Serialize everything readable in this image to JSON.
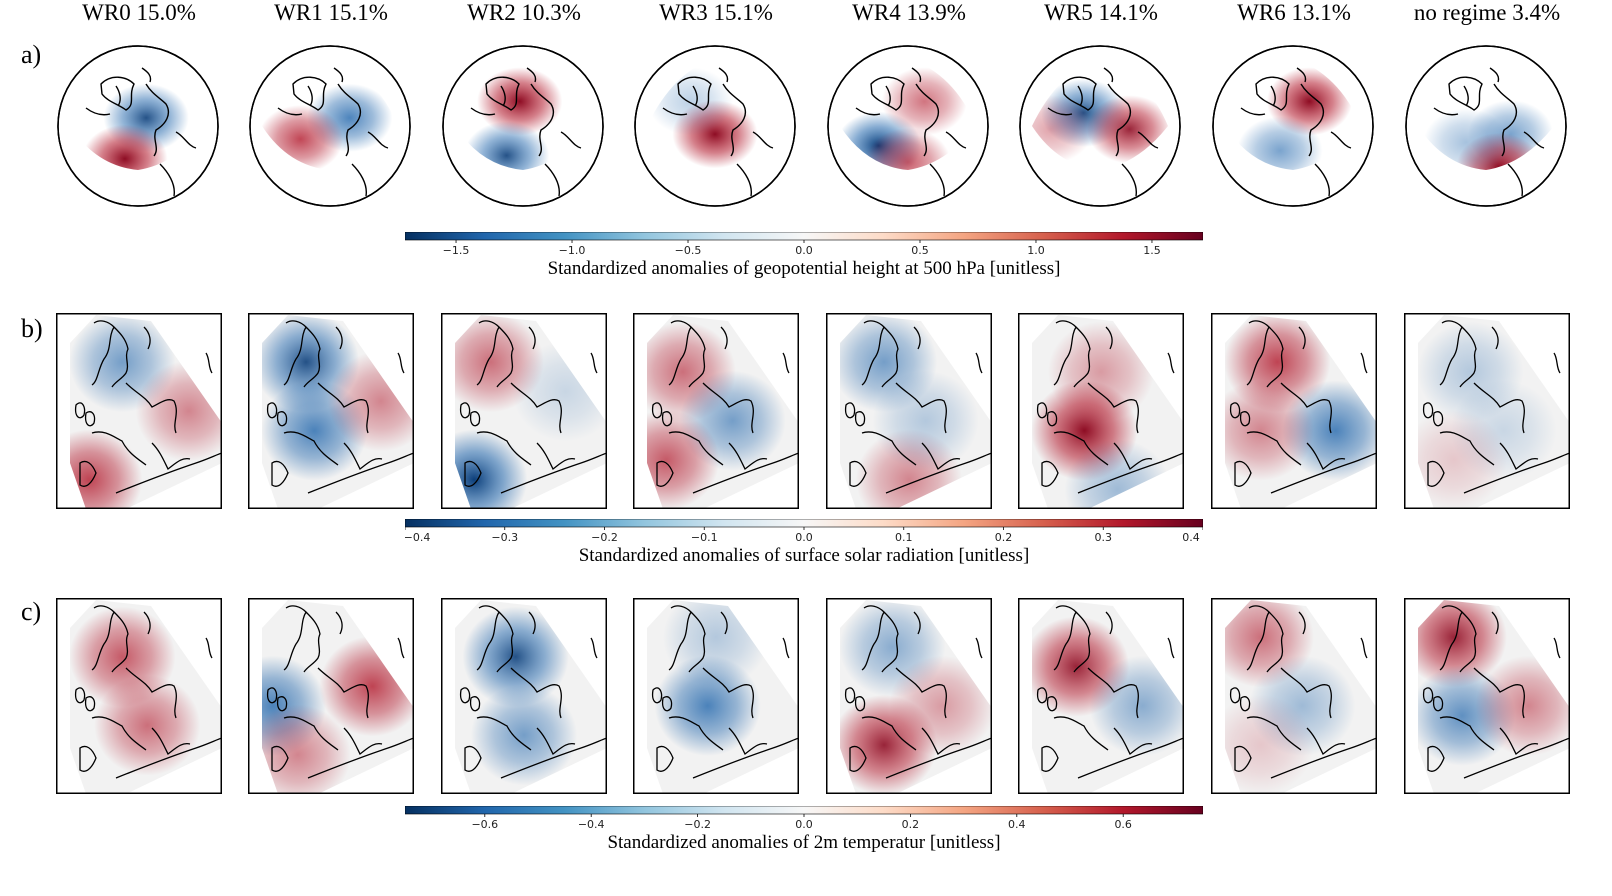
{
  "chart_data": {
    "type": "heatmap",
    "regimes": [
      "WR0",
      "WR1",
      "WR2",
      "WR3",
      "WR4",
      "WR5",
      "WR6",
      "no regime"
    ],
    "regime_titles": [
      "WR0 15.0%",
      "WR1 15.1%",
      "WR2 10.3%",
      "WR3 15.1%",
      "WR4 13.9%",
      "WR5 14.1%",
      "WR6 13.1%",
      "no regime 3.4%"
    ],
    "frequency_percent": [
      15.0,
      15.1,
      10.3,
      15.1,
      13.9,
      14.1,
      13.1,
      3.4
    ],
    "rows": [
      {
        "label": "a)",
        "variable": "geopotential height at 500 hPa",
        "colorbar_label": "Standardized anomalies of geopotential height at 500 hPa [unitless]",
        "range": [
          -1.72,
          1.72
        ],
        "ticks": [
          -1.5,
          -1.0,
          -0.5,
          0.0,
          0.5,
          1.0,
          1.5
        ],
        "tick_labels": [
          "−1.5",
          "−1.0",
          "−0.5",
          "0.0",
          "0.5",
          "1.0",
          "1.5"
        ]
      },
      {
        "label": "b)",
        "variable": "surface solar radiation",
        "colorbar_label": "Standardized anomalies of surface solar radiation [unitless]",
        "range": [
          -0.4,
          0.4
        ],
        "ticks": [
          -0.4,
          -0.3,
          -0.2,
          -0.1,
          0.0,
          0.1,
          0.2,
          0.3,
          0.4
        ],
        "tick_labels": [
          "−0.4",
          "−0.3",
          "−0.2",
          "−0.1",
          "0.0",
          "0.1",
          "0.2",
          "0.3",
          "0.4"
        ]
      },
      {
        "label": "c)",
        "variable": "2m temperature",
        "colorbar_label": "Standardized anomalies of 2m temperatur [unitless]",
        "range": [
          -0.75,
          0.75
        ],
        "ticks": [
          -0.6,
          -0.4,
          -0.2,
          0.0,
          0.2,
          0.4,
          0.6
        ],
        "tick_labels": [
          "−0.6",
          "−0.4",
          "−0.2",
          "0.0",
          "0.2",
          "0.4",
          "0.6"
        ]
      }
    ],
    "colormap": [
      "#053061",
      "#2166ac",
      "#4393c3",
      "#92c5de",
      "#d1e5f0",
      "#f7f7f7",
      "#fddbc7",
      "#f4a582",
      "#d6604d",
      "#b2182b",
      "#67001f"
    ],
    "anomaly_patterns": {
      "z500": [
        [
          {
            "x": 0.55,
            "y": 0.45,
            "v": -0.9
          },
          {
            "x": 0.42,
            "y": 0.7,
            "v": 1.0
          }
        ],
        [
          {
            "x": 0.62,
            "y": 0.45,
            "v": -0.8
          },
          {
            "x": 0.32,
            "y": 0.58,
            "v": 0.8
          }
        ],
        [
          {
            "x": 0.48,
            "y": 0.35,
            "v": 1.0
          },
          {
            "x": 0.4,
            "y": 0.68,
            "v": -0.9
          }
        ],
        [
          {
            "x": 0.5,
            "y": 0.55,
            "v": 1.0
          },
          {
            "x": 0.35,
            "y": 0.35,
            "v": -0.3
          }
        ],
        [
          {
            "x": 0.32,
            "y": 0.62,
            "v": -1.0
          },
          {
            "x": 0.6,
            "y": 0.35,
            "v": 0.6
          },
          {
            "x": 0.5,
            "y": 0.72,
            "v": 0.7
          }
        ],
        [
          {
            "x": 0.4,
            "y": 0.42,
            "v": -0.9
          },
          {
            "x": 0.68,
            "y": 0.52,
            "v": 0.9
          },
          {
            "x": 0.2,
            "y": 0.52,
            "v": 0.4
          }
        ],
        [
          {
            "x": 0.6,
            "y": 0.35,
            "v": 1.0
          },
          {
            "x": 0.42,
            "y": 0.65,
            "v": -0.6
          }
        ],
        [
          {
            "x": 0.65,
            "y": 0.55,
            "v": -0.6
          },
          {
            "x": 0.58,
            "y": 0.75,
            "v": 1.0
          },
          {
            "x": 0.38,
            "y": 0.6,
            "v": -0.4
          }
        ]
      ],
      "ssr": [
        [
          {
            "x": 0.4,
            "y": 0.25,
            "v": -0.6
          },
          {
            "x": 0.2,
            "y": 0.85,
            "v": 0.8
          },
          {
            "x": 0.8,
            "y": 0.5,
            "v": 0.5
          }
        ],
        [
          {
            "x": 0.35,
            "y": 0.25,
            "v": -0.9
          },
          {
            "x": 0.4,
            "y": 0.6,
            "v": -0.8
          },
          {
            "x": 0.8,
            "y": 0.45,
            "v": 0.5
          }
        ],
        [
          {
            "x": 0.3,
            "y": 0.25,
            "v": 0.6
          },
          {
            "x": 0.2,
            "y": 0.85,
            "v": -1.0
          },
          {
            "x": 0.75,
            "y": 0.4,
            "v": -0.2
          }
        ],
        [
          {
            "x": 0.3,
            "y": 0.3,
            "v": 0.6
          },
          {
            "x": 0.6,
            "y": 0.55,
            "v": -0.6
          },
          {
            "x": 0.2,
            "y": 0.75,
            "v": 0.7
          }
        ],
        [
          {
            "x": 0.35,
            "y": 0.25,
            "v": -0.6
          },
          {
            "x": 0.5,
            "y": 0.85,
            "v": 0.5
          },
          {
            "x": 0.6,
            "y": 0.55,
            "v": -0.3
          }
        ],
        [
          {
            "x": 0.4,
            "y": 0.6,
            "v": 1.0
          },
          {
            "x": 0.5,
            "y": 0.3,
            "v": 0.4
          },
          {
            "x": 0.6,
            "y": 0.9,
            "v": -0.4
          }
        ],
        [
          {
            "x": 0.4,
            "y": 0.25,
            "v": 0.8
          },
          {
            "x": 0.75,
            "y": 0.6,
            "v": -0.8
          },
          {
            "x": 0.3,
            "y": 0.6,
            "v": 0.5
          }
        ],
        [
          {
            "x": 0.4,
            "y": 0.3,
            "v": -0.3
          },
          {
            "x": 0.6,
            "y": 0.6,
            "v": -0.2
          },
          {
            "x": 0.3,
            "y": 0.75,
            "v": 0.2
          }
        ]
      ],
      "t2m": [
        [
          {
            "x": 0.4,
            "y": 0.3,
            "v": 0.7
          },
          {
            "x": 0.55,
            "y": 0.65,
            "v": 0.6
          }
        ],
        [
          {
            "x": 0.15,
            "y": 0.55,
            "v": -0.8
          },
          {
            "x": 0.75,
            "y": 0.45,
            "v": 0.8
          },
          {
            "x": 0.3,
            "y": 0.8,
            "v": 0.5
          }
        ],
        [
          {
            "x": 0.45,
            "y": 0.3,
            "v": -0.9
          },
          {
            "x": 0.5,
            "y": 0.7,
            "v": -0.6
          }
        ],
        [
          {
            "x": 0.45,
            "y": 0.55,
            "v": -0.8
          },
          {
            "x": 0.5,
            "y": 0.2,
            "v": -0.3
          }
        ],
        [
          {
            "x": 0.35,
            "y": 0.75,
            "v": 0.9
          },
          {
            "x": 0.4,
            "y": 0.25,
            "v": -0.5
          },
          {
            "x": 0.7,
            "y": 0.55,
            "v": 0.4
          }
        ],
        [
          {
            "x": 0.35,
            "y": 0.35,
            "v": 0.9
          },
          {
            "x": 0.75,
            "y": 0.55,
            "v": -0.5
          }
        ],
        [
          {
            "x": 0.3,
            "y": 0.2,
            "v": 0.6
          },
          {
            "x": 0.55,
            "y": 0.55,
            "v": -0.4
          },
          {
            "x": 0.3,
            "y": 0.75,
            "v": 0.2
          }
        ],
        [
          {
            "x": 0.3,
            "y": 0.2,
            "v": 0.9
          },
          {
            "x": 0.35,
            "y": 0.6,
            "v": -0.7
          },
          {
            "x": 0.75,
            "y": 0.55,
            "v": 0.5
          }
        ]
      ]
    }
  }
}
